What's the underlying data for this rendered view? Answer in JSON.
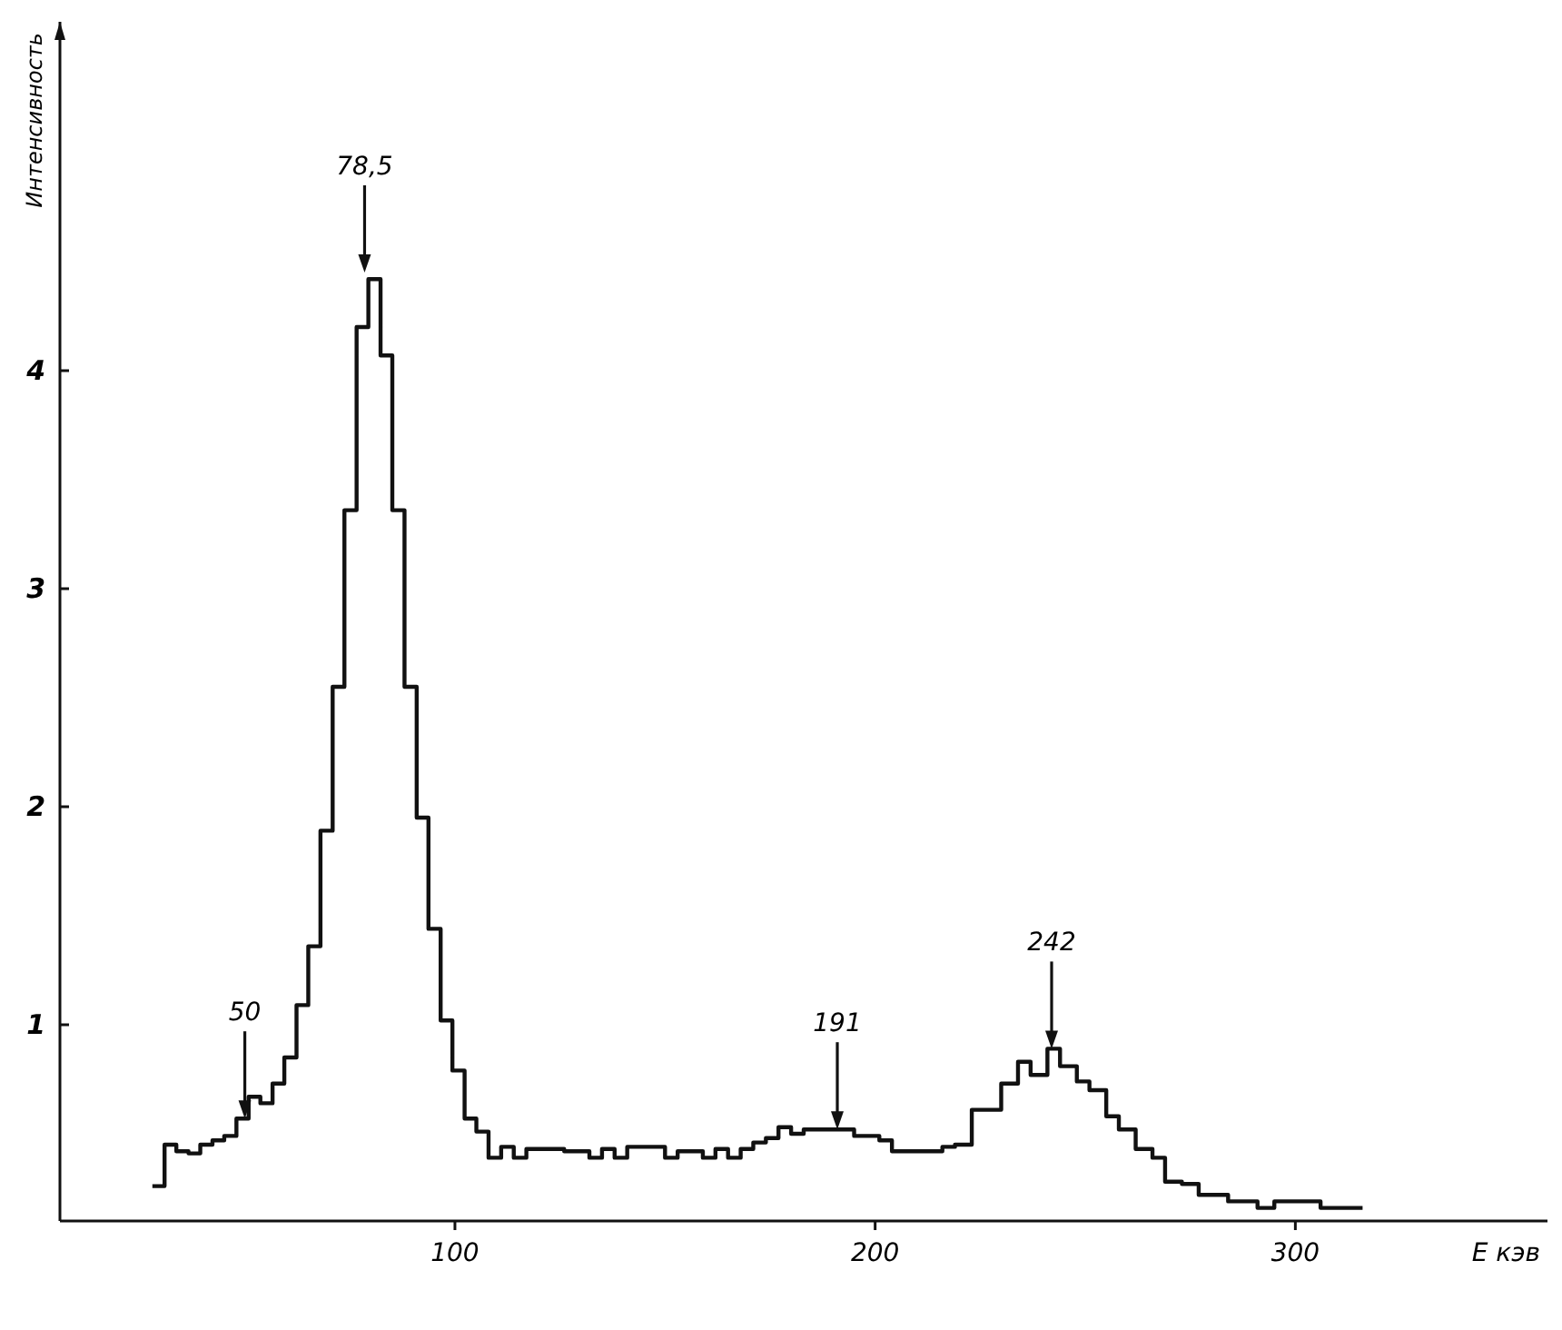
{
  "chart_data": {
    "type": "histogram",
    "xlabel": "E кэв",
    "ylabel": "Интенсивность",
    "color": "#111111",
    "bins": [
      28.0,
      30.9,
      33.7,
      36.6,
      39.4,
      42.3,
      45.1,
      48.0,
      50.9,
      53.7,
      56.6,
      59.4,
      62.3,
      65.1,
      68.0,
      70.9,
      73.7,
      76.6,
      79.4,
      82.3,
      85.1,
      88.0,
      90.9,
      93.7,
      96.6,
      99.4,
      102.3,
      105.1,
      108,
      111,
      114,
      117,
      120,
      123,
      126,
      129,
      132,
      135,
      138,
      141,
      144,
      147,
      150,
      153,
      156,
      159,
      162,
      165,
      168,
      171,
      174,
      177,
      180,
      183,
      186,
      189,
      192,
      195,
      198,
      201,
      204,
      207,
      210,
      213,
      216,
      219,
      223,
      230,
      234,
      237,
      241,
      244,
      248,
      251,
      255,
      258,
      262,
      266,
      269,
      273,
      277,
      284,
      291,
      295,
      306,
      316
    ],
    "values": [
      0.26,
      0.45,
      0.42,
      0.41,
      0.45,
      0.47,
      0.49,
      0.57,
      0.67,
      0.64,
      0.73,
      0.85,
      1.09,
      1.36,
      1.89,
      2.55,
      3.36,
      4.2,
      4.42,
      4.07,
      3.36,
      2.55,
      1.95,
      1.44,
      1.02,
      0.79,
      0.57,
      0.51,
      0.39,
      0.44,
      0.39,
      0.43,
      0.43,
      0.43,
      0.42,
      0.42,
      0.39,
      0.43,
      0.39,
      0.44,
      0.44,
      0.44,
      0.39,
      0.42,
      0.42,
      0.39,
      0.43,
      0.39,
      0.43,
      0.46,
      0.48,
      0.53,
      0.5,
      0.52,
      0.52,
      0.52,
      0.52,
      0.49,
      0.49,
      0.47,
      0.42,
      0.42,
      0.42,
      0.42,
      0.44,
      0.45,
      0.61,
      0.73,
      0.83,
      0.77,
      0.89,
      0.81,
      0.74,
      0.7,
      0.58,
      0.52,
      0.43,
      0.39,
      0.28,
      0.27,
      0.22,
      0.19,
      0.16,
      0.19,
      0.16
    ],
    "xlim": [
      6,
      360
    ],
    "xticks": [
      100,
      200,
      300
    ],
    "ylim": [
      0.1,
      5.6
    ],
    "yticks": [
      1,
      2,
      3,
      4
    ],
    "grid": false,
    "annotations": [
      {
        "text": "50",
        "x": 50,
        "y": 0.57
      },
      {
        "text": "78,5",
        "x": 78.5,
        "y": 4.45
      },
      {
        "text": "191",
        "x": 191,
        "y": 0.52
      },
      {
        "text": "242",
        "x": 242,
        "y": 0.89
      }
    ]
  }
}
